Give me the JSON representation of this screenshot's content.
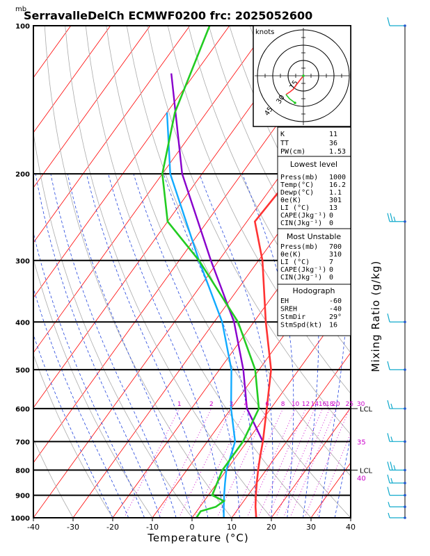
{
  "header": {
    "unit_mb": "mb",
    "title": "SerravalleDelCh  ECMWF0200  frc: 2025052600"
  },
  "x_axis": {
    "label": "Temperature (°C)",
    "ticks": [
      "-40",
      "-30",
      "-20",
      "-10",
      "0",
      "10",
      "20",
      "30",
      "40"
    ]
  },
  "y_axis": {
    "ticks": [
      "100",
      "200",
      "300",
      "400",
      "500",
      "600",
      "700",
      "800",
      "900",
      "1000"
    ]
  },
  "mixing_ratio": {
    "label": "Mixing Ratio (g/kg)",
    "values": [
      "1",
      "2",
      "3",
      "4",
      "6",
      "8",
      "10",
      "12",
      "14",
      "16",
      "18",
      "20",
      "25",
      "30"
    ],
    "lcl_labels": [
      {
        "text": "LCL",
        "p": 600
      },
      {
        "text": "LCL",
        "p": 800
      }
    ],
    "right_values": [
      {
        "text": "35",
        "p": 700
      },
      {
        "text": "40",
        "p": 830
      }
    ]
  },
  "hodograph": {
    "units": "knots",
    "ring_labels": [
      "15",
      "30",
      "45"
    ]
  },
  "indices": {
    "K": {
      "label": "K",
      "value": "11"
    },
    "TT": {
      "label": "TT",
      "value": "36"
    },
    "PW": {
      "label": "PW(cm)",
      "value": "1.53"
    }
  },
  "lowest_level": {
    "title": "Lowest level",
    "rows": [
      {
        "label": "Press(mb)",
        "value": "1000"
      },
      {
        "label": "Temp(°C)",
        "value": "16.2"
      },
      {
        "label": "Dewp(°C)",
        "value": "1.1"
      },
      {
        "label": "θe(K)",
        "value": "301"
      },
      {
        "label": "LI (°C)",
        "value": "13"
      },
      {
        "label": "CAPE(Jkg⁻¹)",
        "value": "0"
      },
      {
        "label": "CIN(Jkg⁻¹)",
        "value": "0"
      }
    ]
  },
  "most_unstable": {
    "title": "Most Unstable",
    "rows": [
      {
        "label": "Press(mb)",
        "value": "700"
      },
      {
        "label": "θe(K)",
        "value": "310"
      },
      {
        "label": "LI (°C)",
        "value": "7"
      },
      {
        "label": "CAPE(Jkg⁻¹)",
        "value": "0"
      },
      {
        "label": "CIN(Jkg⁻¹)",
        "value": "0"
      }
    ]
  },
  "hodo_params": {
    "title": "Hodograph",
    "rows": [
      {
        "label": "EH",
        "value": "-60"
      },
      {
        "label": "SREH",
        "value": "-40"
      },
      {
        "label": "StmDir",
        "value": "29°"
      },
      {
        "label": "StmSpd(kt)",
        "value": "16"
      }
    ]
  },
  "colors": {
    "temperature": "#ff3333",
    "dewpoint": "#22cc22",
    "parcel": "#8800cc",
    "wetbulb": "#11aaff",
    "isotherm": "#ff0000",
    "dry_adiabat": "#aaaaaa",
    "moist_adiabat": "#2244dd",
    "mixing_ratio": "#cc00cc",
    "wind": "#11aacc"
  },
  "chart_data": {
    "type": "skew-t",
    "x_range": [
      -40,
      40
    ],
    "p_range": [
      1000,
      100
    ],
    "temperature": [
      [
        1000,
        16.2
      ],
      [
        950,
        14
      ],
      [
        900,
        12
      ],
      [
        850,
        10
      ],
      [
        800,
        8
      ],
      [
        750,
        6
      ],
      [
        700,
        4
      ],
      [
        600,
        -1
      ],
      [
        500,
        -7
      ],
      [
        400,
        -17
      ],
      [
        300,
        -29
      ],
      [
        250,
        -38
      ],
      [
        200,
        -37
      ],
      [
        150,
        -36
      ],
      [
        100,
        -35
      ]
    ],
    "dewpoint": [
      [
        1000,
        1.1
      ],
      [
        970,
        1
      ],
      [
        950,
        4
      ],
      [
        925,
        5
      ],
      [
        900,
        1
      ],
      [
        850,
        0
      ],
      [
        800,
        -1
      ],
      [
        700,
        -1
      ],
      [
        600,
        -3
      ],
      [
        500,
        -11
      ],
      [
        400,
        -24
      ],
      [
        300,
        -45
      ],
      [
        250,
        -60
      ],
      [
        200,
        -70
      ],
      [
        150,
        -78
      ],
      [
        100,
        -85
      ]
    ],
    "parcel": [
      [
        700,
        4
      ],
      [
        600,
        -6
      ],
      [
        500,
        -14
      ],
      [
        400,
        -25
      ],
      [
        300,
        -42
      ],
      [
        200,
        -65
      ],
      [
        125,
        -86
      ]
    ],
    "wetbulb": [
      [
        1000,
        8
      ],
      [
        950,
        6
      ],
      [
        900,
        4
      ],
      [
        850,
        2
      ],
      [
        800,
        0
      ],
      [
        700,
        -3
      ],
      [
        600,
        -10
      ],
      [
        500,
        -17
      ],
      [
        400,
        -28
      ],
      [
        300,
        -45
      ],
      [
        200,
        -68
      ],
      [
        150,
        -80
      ]
    ],
    "wind_barbs_kt": [
      [
        1000,
        5
      ],
      [
        950,
        5
      ],
      [
        900,
        10
      ],
      [
        850,
        15
      ],
      [
        800,
        25
      ],
      [
        700,
        15
      ],
      [
        600,
        15
      ],
      [
        500,
        10
      ],
      [
        400,
        10
      ],
      [
        250,
        25
      ],
      [
        100,
        10
      ]
    ]
  }
}
